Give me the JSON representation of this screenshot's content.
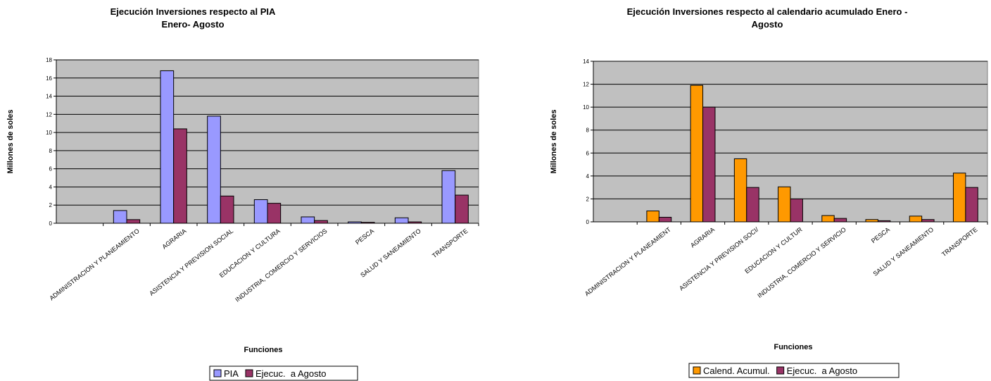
{
  "chart_data": [
    {
      "type": "bar",
      "title": "Ejecución Inversiones respecto al PIA",
      "subtitle": "Enero- Agosto",
      "xlabel": "Funciones",
      "ylabel": "Millones de soles",
      "ylim": [
        0,
        18
      ],
      "yticks": [
        0,
        2,
        4,
        6,
        8,
        10,
        12,
        14,
        16,
        18
      ],
      "grid": true,
      "legend_position": "bottom",
      "categories": [
        "",
        "ADMINISTRACION Y PLANEAMIENTO",
        "AGRARIA",
        "ASISTENCIA Y PREVISION SOCIAL",
        "EDUCACION Y CULTURA",
        "INDUSTRIA, COMERCIO Y SERVICIOS",
        "PESCA",
        "SALUD Y SANEAMIENTO",
        "TRANSPORTE"
      ],
      "series": [
        {
          "name": "PIA",
          "color": "#9999ff",
          "values": [
            0,
            1.4,
            16.8,
            11.8,
            2.6,
            0.7,
            0.15,
            0.6,
            5.8
          ]
        },
        {
          "name": "Ejecuc.  a Agosto",
          "color": "#993366",
          "values": [
            0,
            0.4,
            10.4,
            3.0,
            2.2,
            0.3,
            0.1,
            0.15,
            3.1
          ]
        }
      ]
    },
    {
      "type": "bar",
      "title": "Ejecución Inversiones respecto al calendario acumulado Enero -",
      "subtitle": "Agosto",
      "xlabel": "Funciones",
      "ylabel": "Millones de soles",
      "ylim": [
        0,
        14
      ],
      "yticks": [
        0,
        2,
        4,
        6,
        8,
        10,
        12,
        14
      ],
      "grid": true,
      "legend_position": "bottom",
      "categories": [
        "",
        "ADMINISTRACION Y PLANEAMIENT",
        "AGRARIA",
        "ASISTENCIA Y PREVISION SOCI/",
        "EDUCACION Y CULTUR",
        "INDUSTRIA, COMERCIO Y SERVICIO",
        "PESCA",
        "SALUD Y SANEAMIENTO",
        "TRANSPORTE"
      ],
      "series": [
        {
          "name": "Calend. Acumul.",
          "color": "#ff9900",
          "values": [
            0,
            0.95,
            11.9,
            5.5,
            3.05,
            0.55,
            0.2,
            0.5,
            4.25
          ]
        },
        {
          "name": "Ejecuc.  a Agosto",
          "color": "#993366",
          "values": [
            0,
            0.4,
            10.0,
            3.0,
            2.0,
            0.3,
            0.1,
            0.2,
            3.0
          ]
        }
      ]
    }
  ]
}
